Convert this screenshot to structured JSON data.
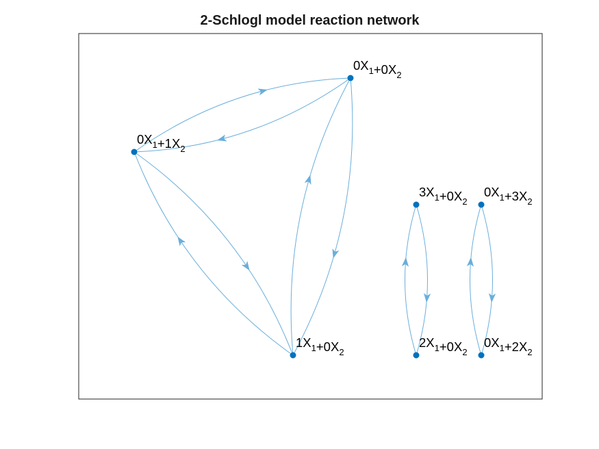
{
  "title": "2-Schlogl model reaction network",
  "colors": {
    "node": "#0072BD",
    "edge": "#6aaedb",
    "axes_box": "#262626",
    "background": "#ffffff"
  },
  "nodes": [
    {
      "id": "n00",
      "terms": [
        {
          "coef": "0",
          "species": "X",
          "sub": "1"
        },
        {
          "coef": "0",
          "species": "X",
          "sub": "2"
        }
      ]
    },
    {
      "id": "n01",
      "terms": [
        {
          "coef": "0",
          "species": "X",
          "sub": "1"
        },
        {
          "coef": "1",
          "species": "X",
          "sub": "2"
        }
      ]
    },
    {
      "id": "n10",
      "terms": [
        {
          "coef": "1",
          "species": "X",
          "sub": "1"
        },
        {
          "coef": "0",
          "species": "X",
          "sub": "2"
        }
      ]
    },
    {
      "id": "n30",
      "terms": [
        {
          "coef": "3",
          "species": "X",
          "sub": "1"
        },
        {
          "coef": "0",
          "species": "X",
          "sub": "2"
        }
      ]
    },
    {
      "id": "n20",
      "terms": [
        {
          "coef": "2",
          "species": "X",
          "sub": "1"
        },
        {
          "coef": "0",
          "species": "X",
          "sub": "2"
        }
      ]
    },
    {
      "id": "n03",
      "terms": [
        {
          "coef": "0",
          "species": "X",
          "sub": "1"
        },
        {
          "coef": "3",
          "species": "X",
          "sub": "2"
        }
      ]
    },
    {
      "id": "n02",
      "terms": [
        {
          "coef": "0",
          "species": "X",
          "sub": "1"
        },
        {
          "coef": "2",
          "species": "X",
          "sub": "2"
        }
      ]
    }
  ],
  "edges": [
    {
      "from": "n00",
      "to": "n01"
    },
    {
      "from": "n01",
      "to": "n00"
    },
    {
      "from": "n01",
      "to": "n10"
    },
    {
      "from": "n10",
      "to": "n01"
    },
    {
      "from": "n00",
      "to": "n10"
    },
    {
      "from": "n10",
      "to": "n00"
    },
    {
      "from": "n30",
      "to": "n20"
    },
    {
      "from": "n20",
      "to": "n30"
    },
    {
      "from": "n03",
      "to": "n02"
    },
    {
      "from": "n02",
      "to": "n03"
    }
  ]
}
